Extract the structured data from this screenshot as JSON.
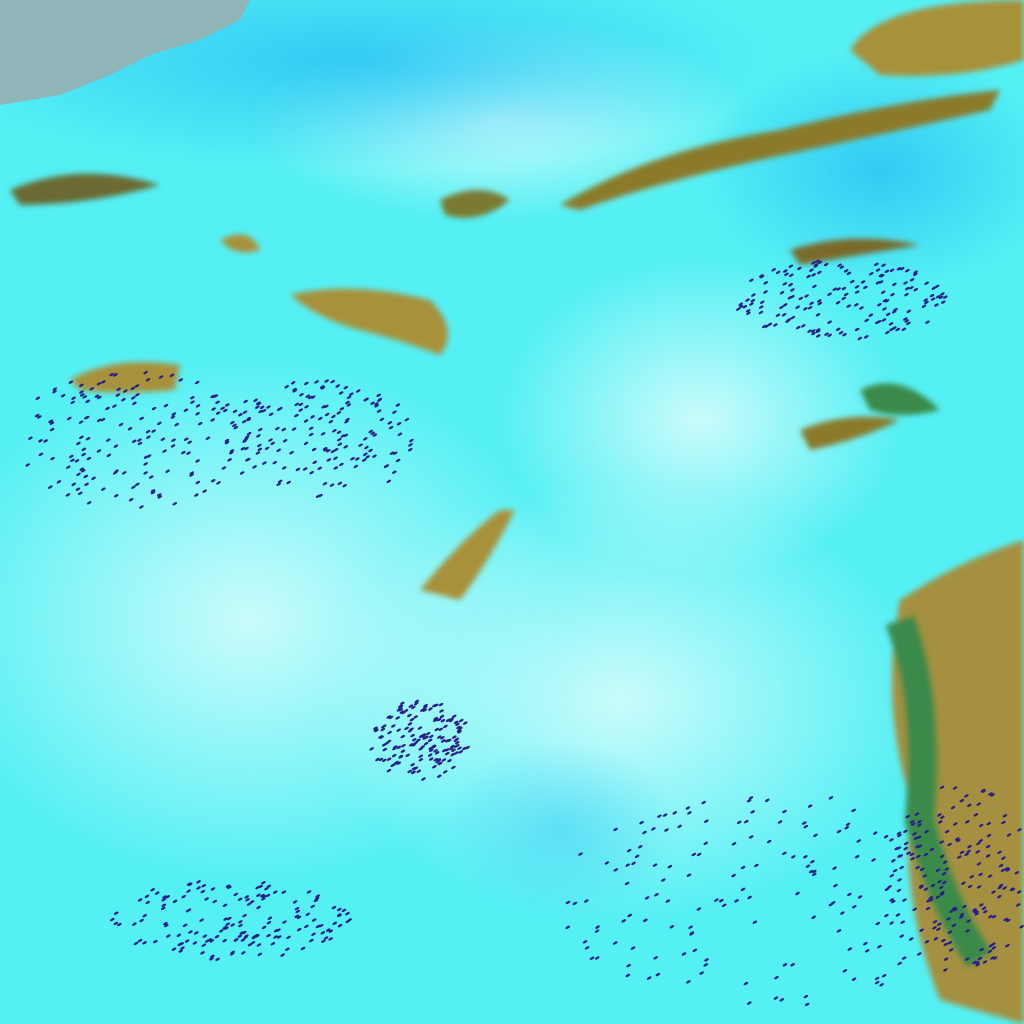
{
  "image": {
    "kind": "false-color satellite imagery",
    "colors": {
      "cloud_cyan": "#3ff2f4",
      "cloud_pale": "#bdfbfb",
      "sky_blue": "#3ccdf5",
      "water_grey": "#8fb5b8",
      "land_olive": "#a8913a",
      "land_green": "#3a8a4a",
      "speckle_navy": "#2a1f8a"
    }
  }
}
